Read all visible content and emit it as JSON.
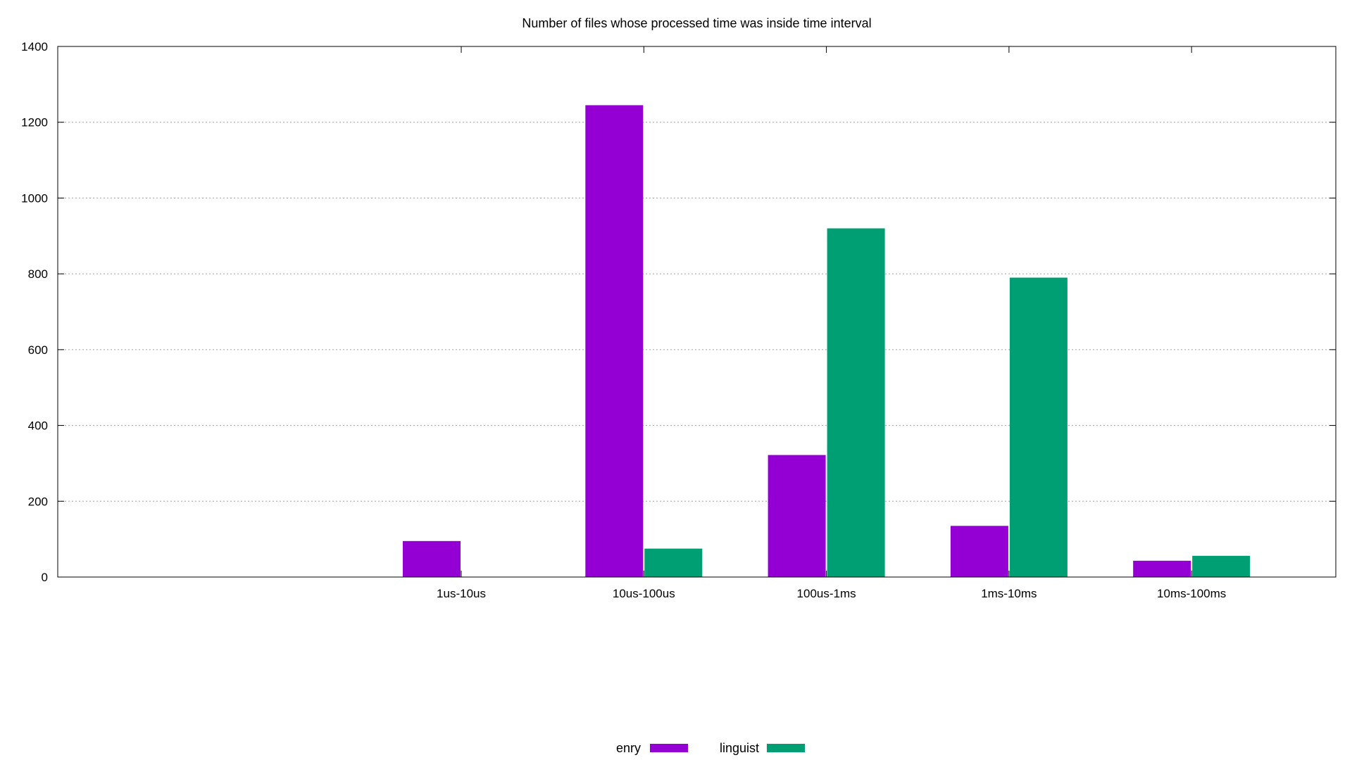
{
  "chart_data": {
    "type": "bar",
    "title": "Number of files whose processed time was inside time interval",
    "xlabel": "",
    "ylabel": "",
    "categories": [
      "1us-10us",
      "10us-100us",
      "100us-1ms",
      "1ms-10ms",
      "10ms-100ms"
    ],
    "series": [
      {
        "name": "enry",
        "color": "#9400d3",
        "values": [
          95,
          1245,
          322,
          135,
          43
        ]
      },
      {
        "name": "linguist",
        "color": "#009e73",
        "values": [
          0,
          75,
          920,
          790,
          56
        ]
      }
    ],
    "ylim": [
      0,
      1400
    ],
    "yticks": [
      0,
      200,
      400,
      600,
      800,
      1000,
      1200,
      1400
    ],
    "grid": true,
    "legend_position": "bottom-center"
  }
}
